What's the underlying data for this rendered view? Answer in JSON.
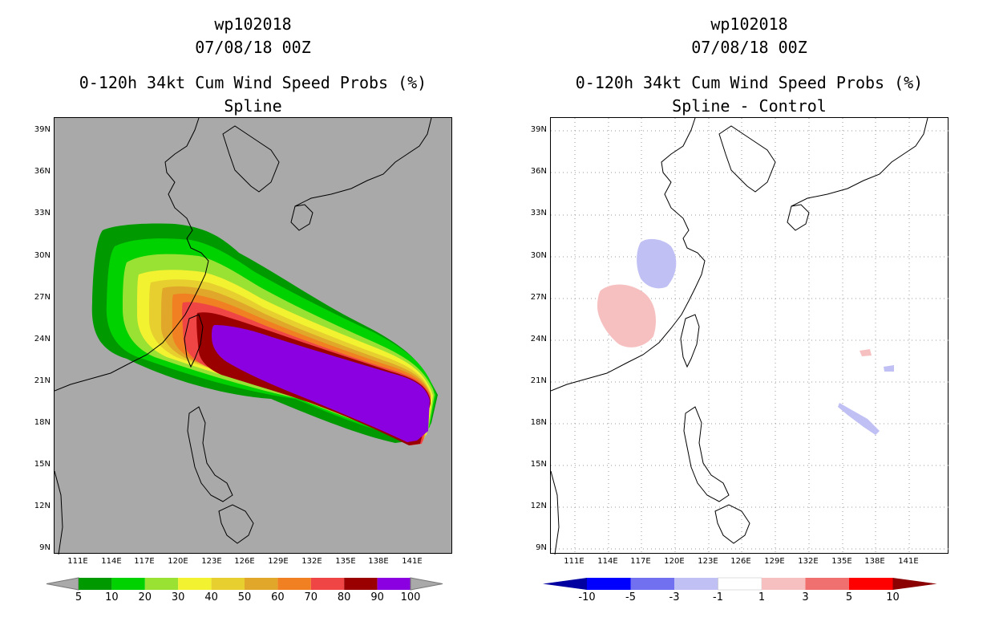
{
  "left_panel": {
    "storm": "wp102018",
    "datetime": "07/08/18 00Z",
    "product": "0-120h 34kt Cum Wind Speed Probs (%)",
    "subtitle": "Spline",
    "background": "#a9a9a9"
  },
  "right_panel": {
    "storm": "wp102018",
    "datetime": "07/08/18 00Z",
    "product": "0-120h 34kt Cum Wind Speed Probs (%)",
    "subtitle": "Spline - Control",
    "background": "#ffffff"
  },
  "lat_labels": [
    "39N",
    "36N",
    "33N",
    "30N",
    "27N",
    "24N",
    "21N",
    "18N",
    "15N",
    "12N",
    "9N"
  ],
  "lon_labels": [
    "111E",
    "114E",
    "117E",
    "120E",
    "123E",
    "126E",
    "129E",
    "132E",
    "135E",
    "138E",
    "141E"
  ],
  "left_colorbar": {
    "labels": [
      "5",
      "10",
      "20",
      "30",
      "40",
      "50",
      "60",
      "70",
      "80",
      "90",
      "100"
    ],
    "colors": [
      "#009a00",
      "#00d200",
      "#99e233",
      "#f2f230",
      "#e6cf2e",
      "#e0a72a",
      "#f08022",
      "#f04545",
      "#9a0000",
      "#8a00e0"
    ]
  },
  "right_colorbar": {
    "labels": [
      "-10",
      "-5",
      "-3",
      "-1",
      "1",
      "3",
      "5",
      "10"
    ],
    "colors": [
      "#0000a0",
      "#0000ff",
      "#7070f0",
      "#c0c0f4",
      "#ffffff",
      "#f7c0c0",
      "#f07070",
      "#ff0000",
      "#8b0000"
    ]
  },
  "chart_data": {
    "type": "map",
    "lat_range": [
      8.5,
      40
    ],
    "lon_range": [
      108,
      145
    ],
    "left_prob_contours_pct": [
      5,
      10,
      20,
      30,
      40,
      50,
      60,
      70,
      80,
      90,
      100
    ],
    "right_difference_range_pct": [
      -5,
      5
    ]
  }
}
